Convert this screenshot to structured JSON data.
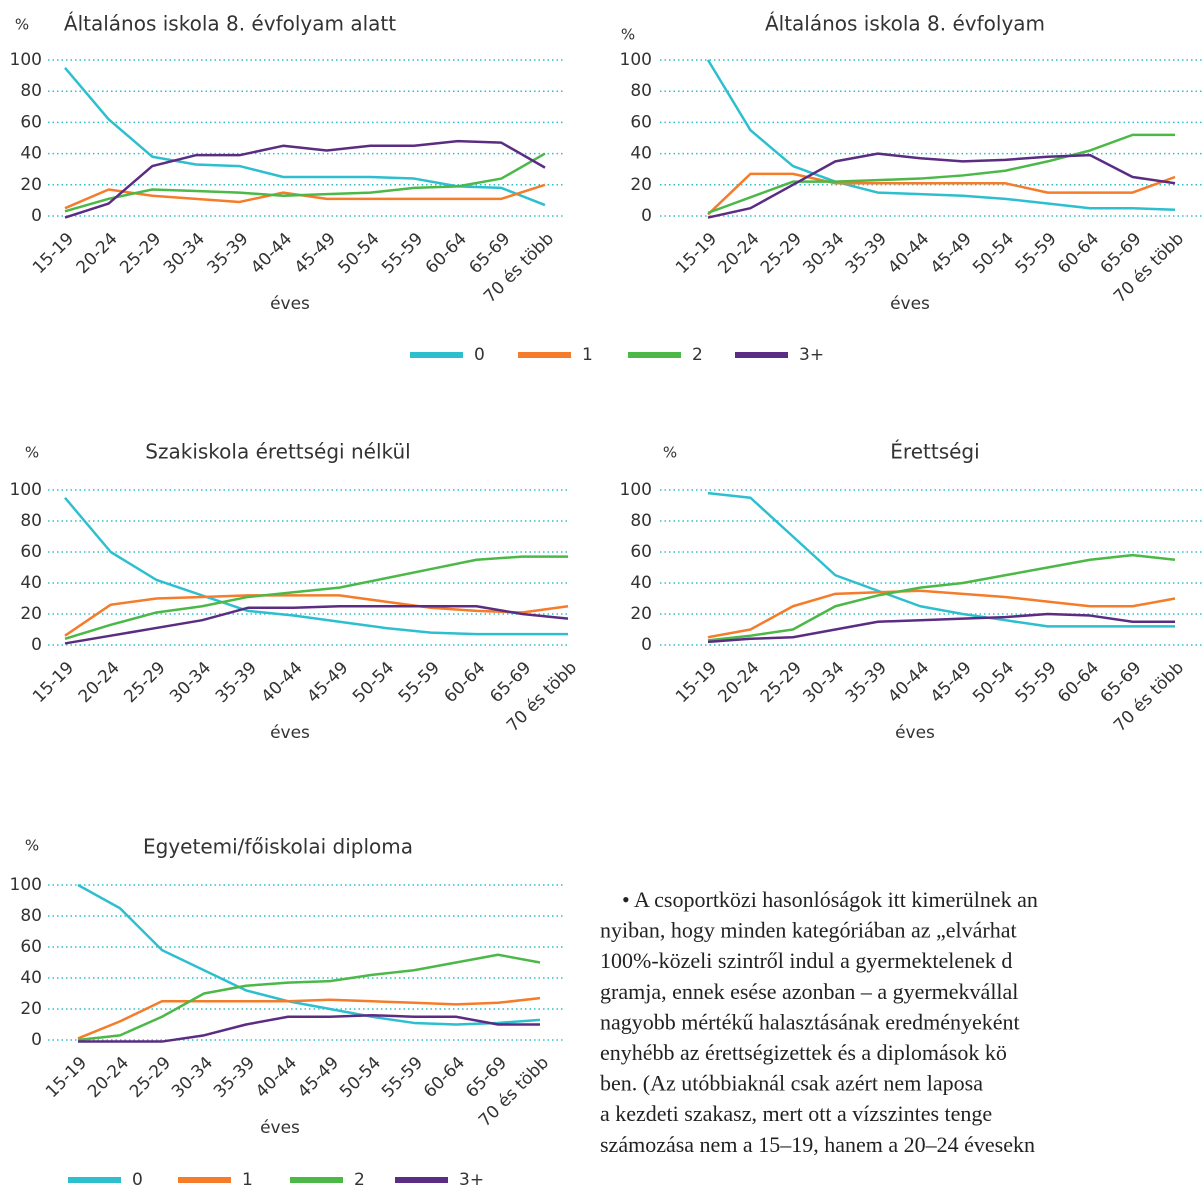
{
  "chart_data": [
    {
      "type": "line",
      "title": "Általános iskola 8. évfolyam alatt",
      "y_unit": "%",
      "x_label": "éves",
      "categories": [
        "15-19",
        "20-24",
        "25-29",
        "30-34",
        "35-39",
        "40-44",
        "45-49",
        "50-54",
        "55-59",
        "60-64",
        "65-69",
        "70 és több"
      ],
      "series": [
        {
          "name": "0",
          "color": "#2ebfcf",
          "values": [
            95,
            62,
            38,
            33,
            32,
            25,
            25,
            25,
            24,
            19,
            18,
            7
          ]
        },
        {
          "name": "1",
          "color": "#f47c2a",
          "values": [
            5,
            17,
            13,
            11,
            9,
            15,
            11,
            11,
            11,
            11,
            11,
            20
          ]
        },
        {
          "name": "2",
          "color": "#4cb848",
          "values": [
            3,
            11,
            17,
            16,
            15,
            13,
            14,
            15,
            18,
            19,
            24,
            40
          ]
        },
        {
          "name": "3+",
          "color": "#5b2d82",
          "values": [
            -1,
            8,
            32,
            39,
            39,
            45,
            42,
            45,
            45,
            48,
            47,
            31
          ]
        }
      ],
      "ylim": [
        0,
        100
      ],
      "yticks": [
        0,
        20,
        40,
        60,
        80,
        100
      ],
      "grid": true
    },
    {
      "type": "line",
      "title": "Általános iskola 8. évfolyam",
      "y_unit": "%",
      "x_label": "éves",
      "categories": [
        "15-19",
        "20-24",
        "25-29",
        "30-34",
        "35-39",
        "40-44",
        "45-49",
        "50-54",
        "55-59",
        "60-64",
        "65-69",
        "70 és több"
      ],
      "series": [
        {
          "name": "0",
          "color": "#2ebfcf",
          "values": [
            100,
            55,
            32,
            22,
            15,
            14,
            13,
            11,
            8,
            5,
            5,
            4
          ]
        },
        {
          "name": "1",
          "color": "#f47c2a",
          "values": [
            1,
            27,
            27,
            21,
            21,
            21,
            21,
            21,
            15,
            15,
            15,
            25
          ]
        },
        {
          "name": "2",
          "color": "#4cb848",
          "values": [
            2,
            12,
            22,
            22,
            23,
            24,
            26,
            29,
            35,
            42,
            52,
            52
          ]
        },
        {
          "name": "3+",
          "color": "#5b2d82",
          "values": [
            -1,
            5,
            20,
            35,
            40,
            37,
            35,
            36,
            38,
            39,
            25,
            21
          ]
        }
      ],
      "ylim": [
        0,
        100
      ],
      "yticks": [
        0,
        20,
        40,
        60,
        80,
        100
      ],
      "grid": true
    },
    {
      "type": "line",
      "title": "Szakiskola érettségi nélkül",
      "y_unit": "%",
      "x_label": "éves",
      "categories": [
        "15-19",
        "20-24",
        "25-29",
        "30-34",
        "35-39",
        "40-44",
        "45-49",
        "50-54",
        "55-59",
        "60-64",
        "65-69",
        "70 és több"
      ],
      "series": [
        {
          "name": "0",
          "color": "#2ebfcf",
          "values": [
            95,
            60,
            42,
            32,
            22,
            19,
            15,
            11,
            8,
            7,
            7,
            7
          ]
        },
        {
          "name": "1",
          "color": "#f47c2a",
          "values": [
            6,
            26,
            30,
            31,
            32,
            32,
            32,
            28,
            24,
            22,
            21,
            25
          ]
        },
        {
          "name": "2",
          "color": "#4cb848",
          "values": [
            4,
            13,
            21,
            25,
            31,
            34,
            37,
            43,
            49,
            55,
            57,
            57
          ]
        },
        {
          "name": "3+",
          "color": "#5b2d82",
          "values": [
            1,
            6,
            11,
            16,
            24,
            24,
            25,
            25,
            25,
            25,
            20,
            17
          ]
        }
      ],
      "ylim": [
        0,
        100
      ],
      "yticks": [
        0,
        20,
        40,
        60,
        80,
        100
      ],
      "grid": true
    },
    {
      "type": "line",
      "title": "Érettségi",
      "y_unit": "%",
      "x_label": "éves",
      "categories": [
        "15-19",
        "20-24",
        "25-29",
        "30-34",
        "35-39",
        "40-44",
        "45-49",
        "50-54",
        "55-59",
        "60-64",
        "65-69",
        "70 és több"
      ],
      "series": [
        {
          "name": "0",
          "color": "#2ebfcf",
          "values": [
            98,
            95,
            70,
            45,
            35,
            25,
            20,
            16,
            12,
            12,
            12,
            12
          ]
        },
        {
          "name": "1",
          "color": "#f47c2a",
          "values": [
            5,
            10,
            25,
            33,
            34,
            35,
            33,
            31,
            28,
            25,
            25,
            30
          ]
        },
        {
          "name": "2",
          "color": "#4cb848",
          "values": [
            3,
            6,
            10,
            25,
            32,
            37,
            40,
            45,
            50,
            55,
            58,
            55
          ]
        },
        {
          "name": "3+",
          "color": "#5b2d82",
          "values": [
            2,
            4,
            5,
            10,
            15,
            16,
            17,
            18,
            20,
            19,
            15,
            15
          ]
        }
      ],
      "ylim": [
        0,
        100
      ],
      "yticks": [
        0,
        20,
        40,
        60,
        80,
        100
      ],
      "grid": true
    },
    {
      "type": "line",
      "title": "Egyetemi/főiskolai diploma",
      "y_unit": "%",
      "x_label": "éves",
      "categories": [
        "15-19",
        "20-24",
        "25-29",
        "30-34",
        "35-39",
        "40-44",
        "45-49",
        "50-54",
        "55-59",
        "60-64",
        "65-69",
        "70 és több"
      ],
      "series": [
        {
          "name": "0",
          "color": "#2ebfcf",
          "values": [
            100,
            85,
            58,
            45,
            32,
            25,
            20,
            15,
            11,
            10,
            11,
            13
          ]
        },
        {
          "name": "1",
          "color": "#f47c2a",
          "values": [
            1,
            12,
            25,
            25,
            25,
            25,
            26,
            25,
            24,
            23,
            24,
            27
          ]
        },
        {
          "name": "2",
          "color": "#4cb848",
          "values": [
            0,
            3,
            15,
            30,
            35,
            37,
            38,
            42,
            45,
            50,
            55,
            50
          ]
        },
        {
          "name": "3+",
          "color": "#5b2d82",
          "values": [
            -1,
            -1,
            -1,
            3,
            10,
            15,
            15,
            16,
            15,
            15,
            10,
            10
          ]
        }
      ],
      "ylim": [
        0,
        100
      ],
      "yticks": [
        0,
        20,
        40,
        60,
        80,
        100
      ],
      "grid": true
    }
  ],
  "paragraph": {
    "lines": [
      "• A csoportközi hasonlóságok itt kimerülnek an",
      "nyiban, hogy minden kategóriában az „elvárhat",
      "100%-közeli szintről indul a gyermektelenek d",
      "gramja, ennek esése azonban – a gyermekvállal",
      "nagyobb mértékű halasztásának eredményeként",
      "enyhébb az érettségizettek és a diplomások kö",
      "ben. (Az utóbbiaknál csak azért nem laposa",
      "a kezdeti szakasz, mert ott a vízszintes tenge",
      "számozása nem a 15–19, hanem a 20–24 évesekn"
    ]
  }
}
